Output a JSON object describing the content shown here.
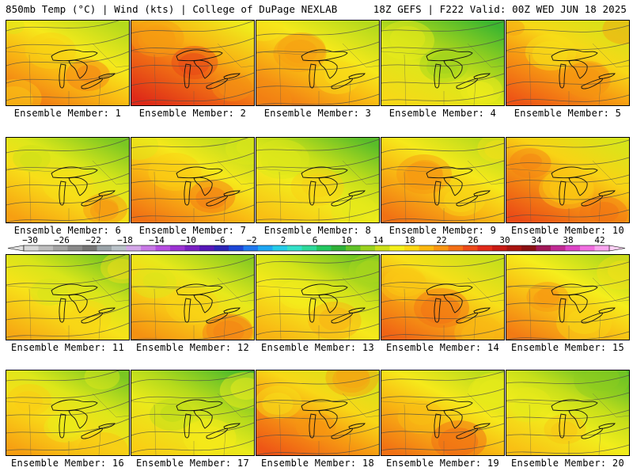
{
  "header": {
    "left": "850mb Temp (°C) | Wind (kts) | College of DuPage NEXLAB",
    "right": "18Z GEFS | F222 Valid: 00Z WED JUN 18 2025"
  },
  "member_label": "Ensemble Member:",
  "members": [
    {
      "number": "1",
      "warmth": 0.62
    },
    {
      "number": "2",
      "warmth": 0.78
    },
    {
      "number": "3",
      "warmth": 0.62
    },
    {
      "number": "4",
      "warmth": 0.38
    },
    {
      "number": "5",
      "warmth": 0.68
    },
    {
      "number": "6",
      "warmth": 0.52
    },
    {
      "number": "7",
      "warmth": 0.62
    },
    {
      "number": "8",
      "warmth": 0.45
    },
    {
      "number": "9",
      "warmth": 0.62
    },
    {
      "number": "10",
      "warmth": 0.7
    },
    {
      "number": "11",
      "warmth": 0.5
    },
    {
      "number": "12",
      "warmth": 0.55
    },
    {
      "number": "13",
      "warmth": 0.48
    },
    {
      "number": "14",
      "warmth": 0.65
    },
    {
      "number": "15",
      "warmth": 0.6
    },
    {
      "number": "16",
      "warmth": 0.52
    },
    {
      "number": "17",
      "warmth": 0.42
    },
    {
      "number": "18",
      "warmth": 0.68
    },
    {
      "number": "19",
      "warmth": 0.62
    },
    {
      "number": "20",
      "warmth": 0.45
    }
  ],
  "colorbar": {
    "tick_labels": [
      "-30",
      "-26",
      "-22",
      "-18",
      "-14",
      "-10",
      "-6",
      "-2",
      "2",
      "6",
      "10",
      "14",
      "18",
      "22",
      "26",
      "30",
      "34",
      "38",
      "42"
    ],
    "colors": [
      "#d9d9d9",
      "#bdbdbd",
      "#a3a3a3",
      "#8a8a8a",
      "#757575",
      "#9aa3a8",
      "#b9c2c8",
      "#d4a7e8",
      "#c879e6",
      "#b64ee0",
      "#9b32d2",
      "#7a1fc2",
      "#5617b8",
      "#2d24b6",
      "#1d46d6",
      "#1f78ee",
      "#1ea6f2",
      "#25cbe8",
      "#34e0c8",
      "#2ed89a",
      "#23c760",
      "#2fb038",
      "#61c228",
      "#9bd21e",
      "#cde01a",
      "#f4ef1c",
      "#fbd814",
      "#fbb810",
      "#f89612",
      "#f36f16",
      "#ec4a19",
      "#e02a1a",
      "#c81a14",
      "#a81410",
      "#8a1013",
      "#a01858",
      "#c02a94",
      "#dd44c6",
      "#f06ee0",
      "#f8a4ee"
    ]
  }
}
